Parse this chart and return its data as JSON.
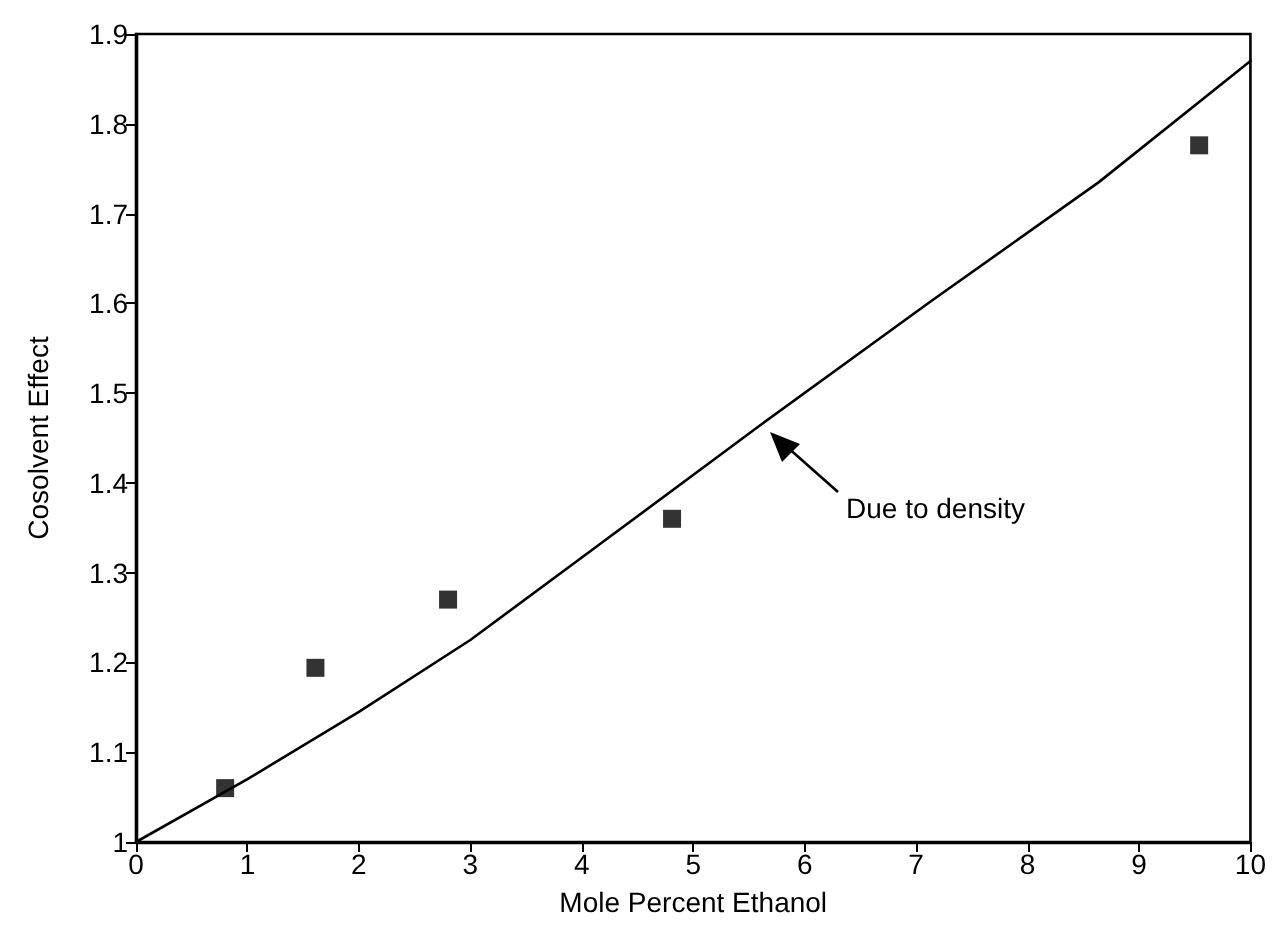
{
  "chart_data": {
    "type": "scatter",
    "xlabel": "Mole Percent Ethanol",
    "ylabel": "Cosolvent Effect",
    "xlim": [
      0,
      10
    ],
    "xticks": [
      0,
      1,
      2,
      3,
      4,
      5,
      6,
      7,
      8,
      9,
      10
    ],
    "ylim": [
      1,
      1.9
    ],
    "yticks": [
      1,
      1.1,
      1.2,
      1.3,
      1.4,
      1.5,
      1.6,
      1.7,
      1.8,
      1.9
    ],
    "grid": false,
    "series": [
      {
        "color": "#000000",
        "marker": "square",
        "x": [
          0.8,
          1.61,
          2.8,
          4.81,
          9.54
        ],
        "values": [
          1.06,
          1.194,
          1.27,
          1.36,
          1.776
        ]
      },
      {
        "type": "line",
        "color": "#000000",
        "marker": "none",
        "line_style": "solid",
        "x": [
          0,
          1,
          2,
          3,
          4.1,
          5.61,
          7.13,
          8.64,
          10
        ],
        "values": [
          1,
          1.07,
          1.145,
          1.225,
          1.326,
          1.465,
          1.602,
          1.735,
          1.87
        ]
      }
    ],
    "annotations": [
      "Due to density"
    ]
  }
}
